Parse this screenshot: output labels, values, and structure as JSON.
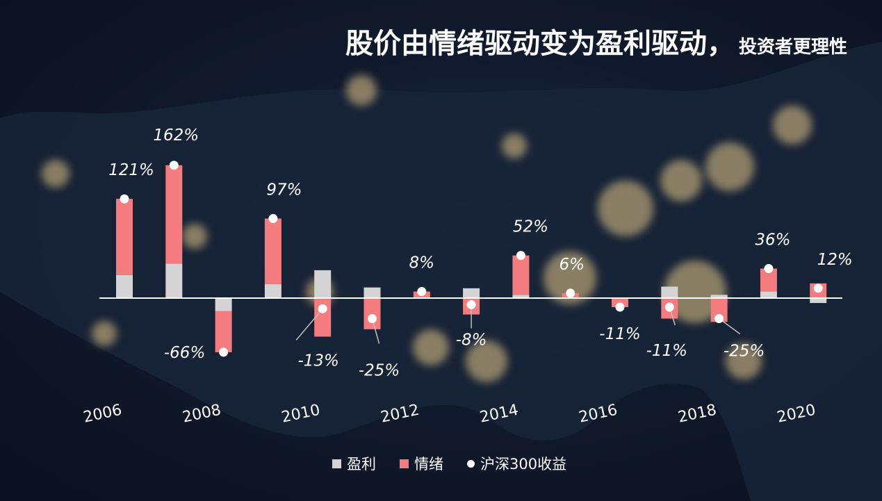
{
  "title": {
    "main": "股价由情绪驱动变为盈利驱动，",
    "sub": "投资者更理性"
  },
  "colors": {
    "profit": "#d4d4d4",
    "sentiment": "#f47b7e",
    "index": "#ffffff",
    "axis": "#ffffff"
  },
  "chart_data": {
    "type": "bar",
    "stacked": true,
    "categories": [
      "2006",
      "2007",
      "2008",
      "2009",
      "2010",
      "2011",
      "2012",
      "2013",
      "2014",
      "2015",
      "2016",
      "2017",
      "2018",
      "2019",
      "2020"
    ],
    "tick_labels": [
      "2006",
      "2008",
      "2010",
      "2012",
      "2014",
      "2016",
      "2018",
      "2020"
    ],
    "series": [
      {
        "name": "盈利",
        "values": [
          28,
          42,
          -16,
          17,
          34,
          13,
          0,
          12,
          4,
          0,
          0,
          14,
          4,
          8,
          -6
        ]
      },
      {
        "name": "情绪",
        "values": [
          93,
          120,
          -50,
          80,
          -47,
          -38,
          8,
          -20,
          48,
          6,
          -11,
          -25,
          -29,
          28,
          18
        ]
      },
      {
        "name": "沪深300收益",
        "values": [
          121,
          162,
          -66,
          97,
          -13,
          -25,
          8,
          -8,
          52,
          6,
          -11,
          -11,
          -25,
          36,
          12
        ]
      }
    ],
    "data_labels": [
      "121%",
      "162%",
      "-66%",
      "97%",
      "-13%",
      "-25%",
      "8%",
      "-8%",
      "52%",
      "6%",
      "-11%",
      "-11%",
      "-25%",
      "36%",
      "12%"
    ],
    "legend_position": "bottom",
    "grid": false
  }
}
